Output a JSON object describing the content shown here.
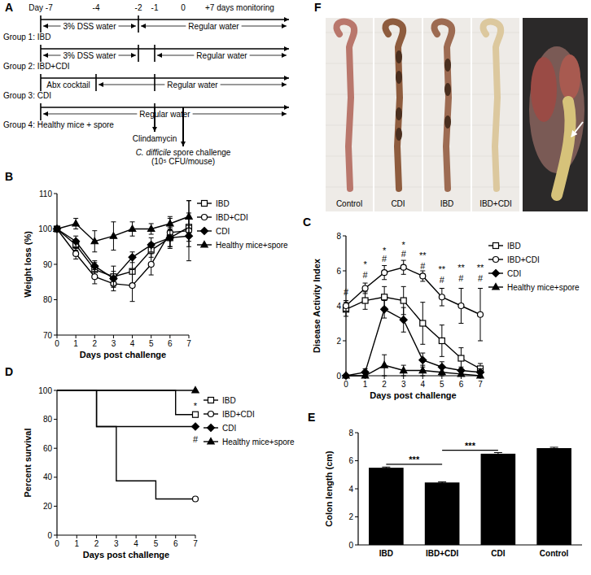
{
  "diagram": {
    "title": "A",
    "day_labels": [
      "Day -7",
      "-4",
      "-2",
      "-1",
      "0",
      "+7 days monitoring"
    ],
    "groups": [
      {
        "label": "Group 1: IBD",
        "segments": [
          "3% DSS water",
          "Regular water"
        ]
      },
      {
        "label": "Group 2: IBD+CDI",
        "segments": [
          "3% DSS water",
          "Regular water"
        ]
      },
      {
        "label": "Group 3: CDI",
        "segments": [
          "Abx cocktail",
          "Regular water"
        ]
      },
      {
        "label": "Group 4: Healthy mice + spore",
        "segments": [
          "Regular water"
        ]
      }
    ],
    "treatment": "Clindamycin",
    "challenge": {
      "organism": "C. difficile",
      "text": " spore challenge",
      "dose": "(10⁵ CFU/mouse)"
    }
  },
  "photo": {
    "title": "F",
    "labels": [
      "Control",
      "CDI",
      "IBD",
      "IBD+CDI"
    ]
  },
  "chart_data": [
    {
      "title": "B",
      "type": "line",
      "x_label": "Days post challenge",
      "y_label": "Weight loss (%)",
      "x": [
        0,
        1,
        2,
        3,
        4,
        5,
        6,
        7
      ],
      "xlim": [
        0,
        7
      ],
      "xticks": [
        0,
        1,
        2,
        3,
        4,
        5,
        6,
        7
      ],
      "ylim": [
        70,
        110
      ],
      "yticks": [
        70,
        80,
        90,
        100,
        110
      ],
      "legend": "right",
      "series": [
        {
          "name": "IBD",
          "color": "#000000",
          "marker": "square",
          "values": [
            100,
            95.5,
            88.5,
            86.5,
            88,
            94,
            97.5,
            100.5
          ],
          "errors": [
            0.5,
            1.5,
            2,
            3,
            4,
            2,
            2.5,
            4
          ]
        },
        {
          "name": "IBD+CDI",
          "color": "#000000",
          "marker": "circle",
          "values": [
            100,
            93,
            86.5,
            84.5,
            84,
            90,
            99,
            99.5
          ],
          "errors": [
            0.5,
            1.5,
            2,
            2,
            4.5,
            3,
            4,
            8.5
          ]
        },
        {
          "name": "CDI",
          "color": "#000000",
          "marker": "diamond",
          "values": [
            100,
            96.5,
            89.5,
            86,
            92,
            95.5,
            97.5,
            98
          ],
          "errors": [
            0.5,
            1.5,
            1.5,
            2,
            1.5,
            2,
            3,
            3
          ]
        },
        {
          "name": "Healthy mice+spore",
          "color": "#000000",
          "marker": "triangle",
          "values": [
            100,
            101.5,
            96.5,
            98,
            100,
            100,
            101.5,
            103.5
          ],
          "errors": [
            0.5,
            1.5,
            3,
            4,
            2,
            1.5,
            2,
            4.5
          ]
        }
      ]
    },
    {
      "title": "C",
      "type": "line",
      "x_label": "Days post challenge",
      "y_label": "Disease Activity Index",
      "x": [
        0,
        1,
        2,
        3,
        4,
        5,
        6,
        7
      ],
      "xlim": [
        0,
        7
      ],
      "xticks": [
        0,
        1,
        2,
        3,
        4,
        5,
        6,
        7
      ],
      "ylim": [
        0,
        8
      ],
      "yticks": [
        0,
        2,
        4,
        6,
        8
      ],
      "legend": "right",
      "series": [
        {
          "name": "IBD",
          "color": "#000000",
          "marker": "square",
          "values": [
            3.8,
            4.3,
            4.5,
            4.3,
            3.0,
            2.0,
            1.0,
            0.4
          ],
          "errors": [
            0.4,
            0.5,
            0.6,
            0.8,
            1.2,
            0.9,
            0.6,
            0.3
          ]
        },
        {
          "name": "IBD+CDI",
          "color": "#000000",
          "marker": "circle",
          "values": [
            4.0,
            5.0,
            5.9,
            6.2,
            5.7,
            4.5,
            4.0,
            3.5
          ],
          "errors": [
            0.3,
            0.3,
            0.4,
            0.4,
            0.3,
            0.5,
            1.0,
            1.5
          ]
        },
        {
          "name": "CDI",
          "color": "#000000",
          "marker": "diamond",
          "values": [
            0,
            0.2,
            3.8,
            3.2,
            0.9,
            0.5,
            0.3,
            0.2
          ],
          "errors": [
            0,
            0.2,
            0.5,
            0.7,
            0.4,
            0.3,
            0.2,
            0.2
          ]
        },
        {
          "name": "Healthy mice+spore",
          "color": "#000000",
          "marker": "triangle",
          "values": [
            0,
            0,
            0.6,
            0.3,
            0.3,
            0.2,
            0.1,
            0
          ],
          "errors": [
            0,
            0,
            0.6,
            0.3,
            0.3,
            0.2,
            0.1,
            0
          ]
        }
      ],
      "annotations": [
        {
          "text": "#",
          "x": 0,
          "y": 4.6
        },
        {
          "text": "*",
          "x": 1,
          "y": 6.2
        },
        {
          "text": "#",
          "x": 1,
          "y": 5.6
        },
        {
          "text": "*",
          "x": 2,
          "y": 7.0
        },
        {
          "text": "#",
          "x": 2,
          "y": 6.5
        },
        {
          "text": "*",
          "x": 3,
          "y": 7.3
        },
        {
          "text": "#",
          "x": 3,
          "y": 6.8
        },
        {
          "text": "**",
          "x": 4,
          "y": 6.7
        },
        {
          "text": "#",
          "x": 4,
          "y": 6.1
        },
        {
          "text": "**",
          "x": 5,
          "y": 5.9
        },
        {
          "text": "#",
          "x": 5,
          "y": 5.3
        },
        {
          "text": "**",
          "x": 6,
          "y": 6.0
        },
        {
          "text": "#",
          "x": 6,
          "y": 5.4
        },
        {
          "text": "**",
          "x": 7,
          "y": 6.0
        },
        {
          "text": "#",
          "x": 7,
          "y": 5.4
        }
      ]
    },
    {
      "title": "D",
      "type": "step",
      "x_label": "Days post challenge",
      "y_label": "Percent survival",
      "xlim": [
        0,
        7
      ],
      "xticks": [
        0,
        1,
        2,
        3,
        4,
        5,
        6,
        7
      ],
      "ylim": [
        0,
        100
      ],
      "yticks": [
        0,
        20,
        40,
        60,
        80,
        100
      ],
      "legend": "right",
      "series": [
        {
          "name": "IBD",
          "color": "#000000",
          "marker": "square",
          "x": [
            0,
            6,
            7
          ],
          "values": [
            100,
            83.3,
            83.3
          ]
        },
        {
          "name": "IBD+CDI",
          "color": "#000000",
          "marker": "circle",
          "x": [
            0,
            2,
            3,
            5,
            7
          ],
          "values": [
            100,
            75,
            37.5,
            25,
            25
          ]
        },
        {
          "name": "CDI",
          "color": "#000000",
          "marker": "diamond",
          "x": [
            0,
            2,
            7
          ],
          "values": [
            100,
            75,
            75
          ]
        },
        {
          "name": "Healthy mice+spore",
          "color": "#000000",
          "marker": "triangle",
          "x": [
            0,
            7
          ],
          "values": [
            100,
            100
          ]
        }
      ],
      "annotations": [
        {
          "text": "*",
          "x": 7,
          "y": 87
        },
        {
          "text": "#",
          "x": 7,
          "y": 64
        }
      ]
    },
    {
      "title": "E",
      "type": "bar",
      "y_label": "Colon length (cm)",
      "categories": [
        "IBD",
        "IBD+CDI",
        "CDI",
        "Control"
      ],
      "values": [
        5.5,
        4.45,
        6.5,
        6.9
      ],
      "errors": [
        0.05,
        0.05,
        0.08,
        0.06
      ],
      "color": "#000000",
      "ylim": [
        0,
        8
      ],
      "yticks": [
        0,
        2,
        4,
        6,
        8
      ],
      "annotations": [
        {
          "text": "***",
          "x1": 0,
          "x2": 1,
          "y": 5.75
        },
        {
          "text": "***",
          "x1": 1,
          "x2": 2,
          "y": 6.75
        }
      ]
    }
  ]
}
